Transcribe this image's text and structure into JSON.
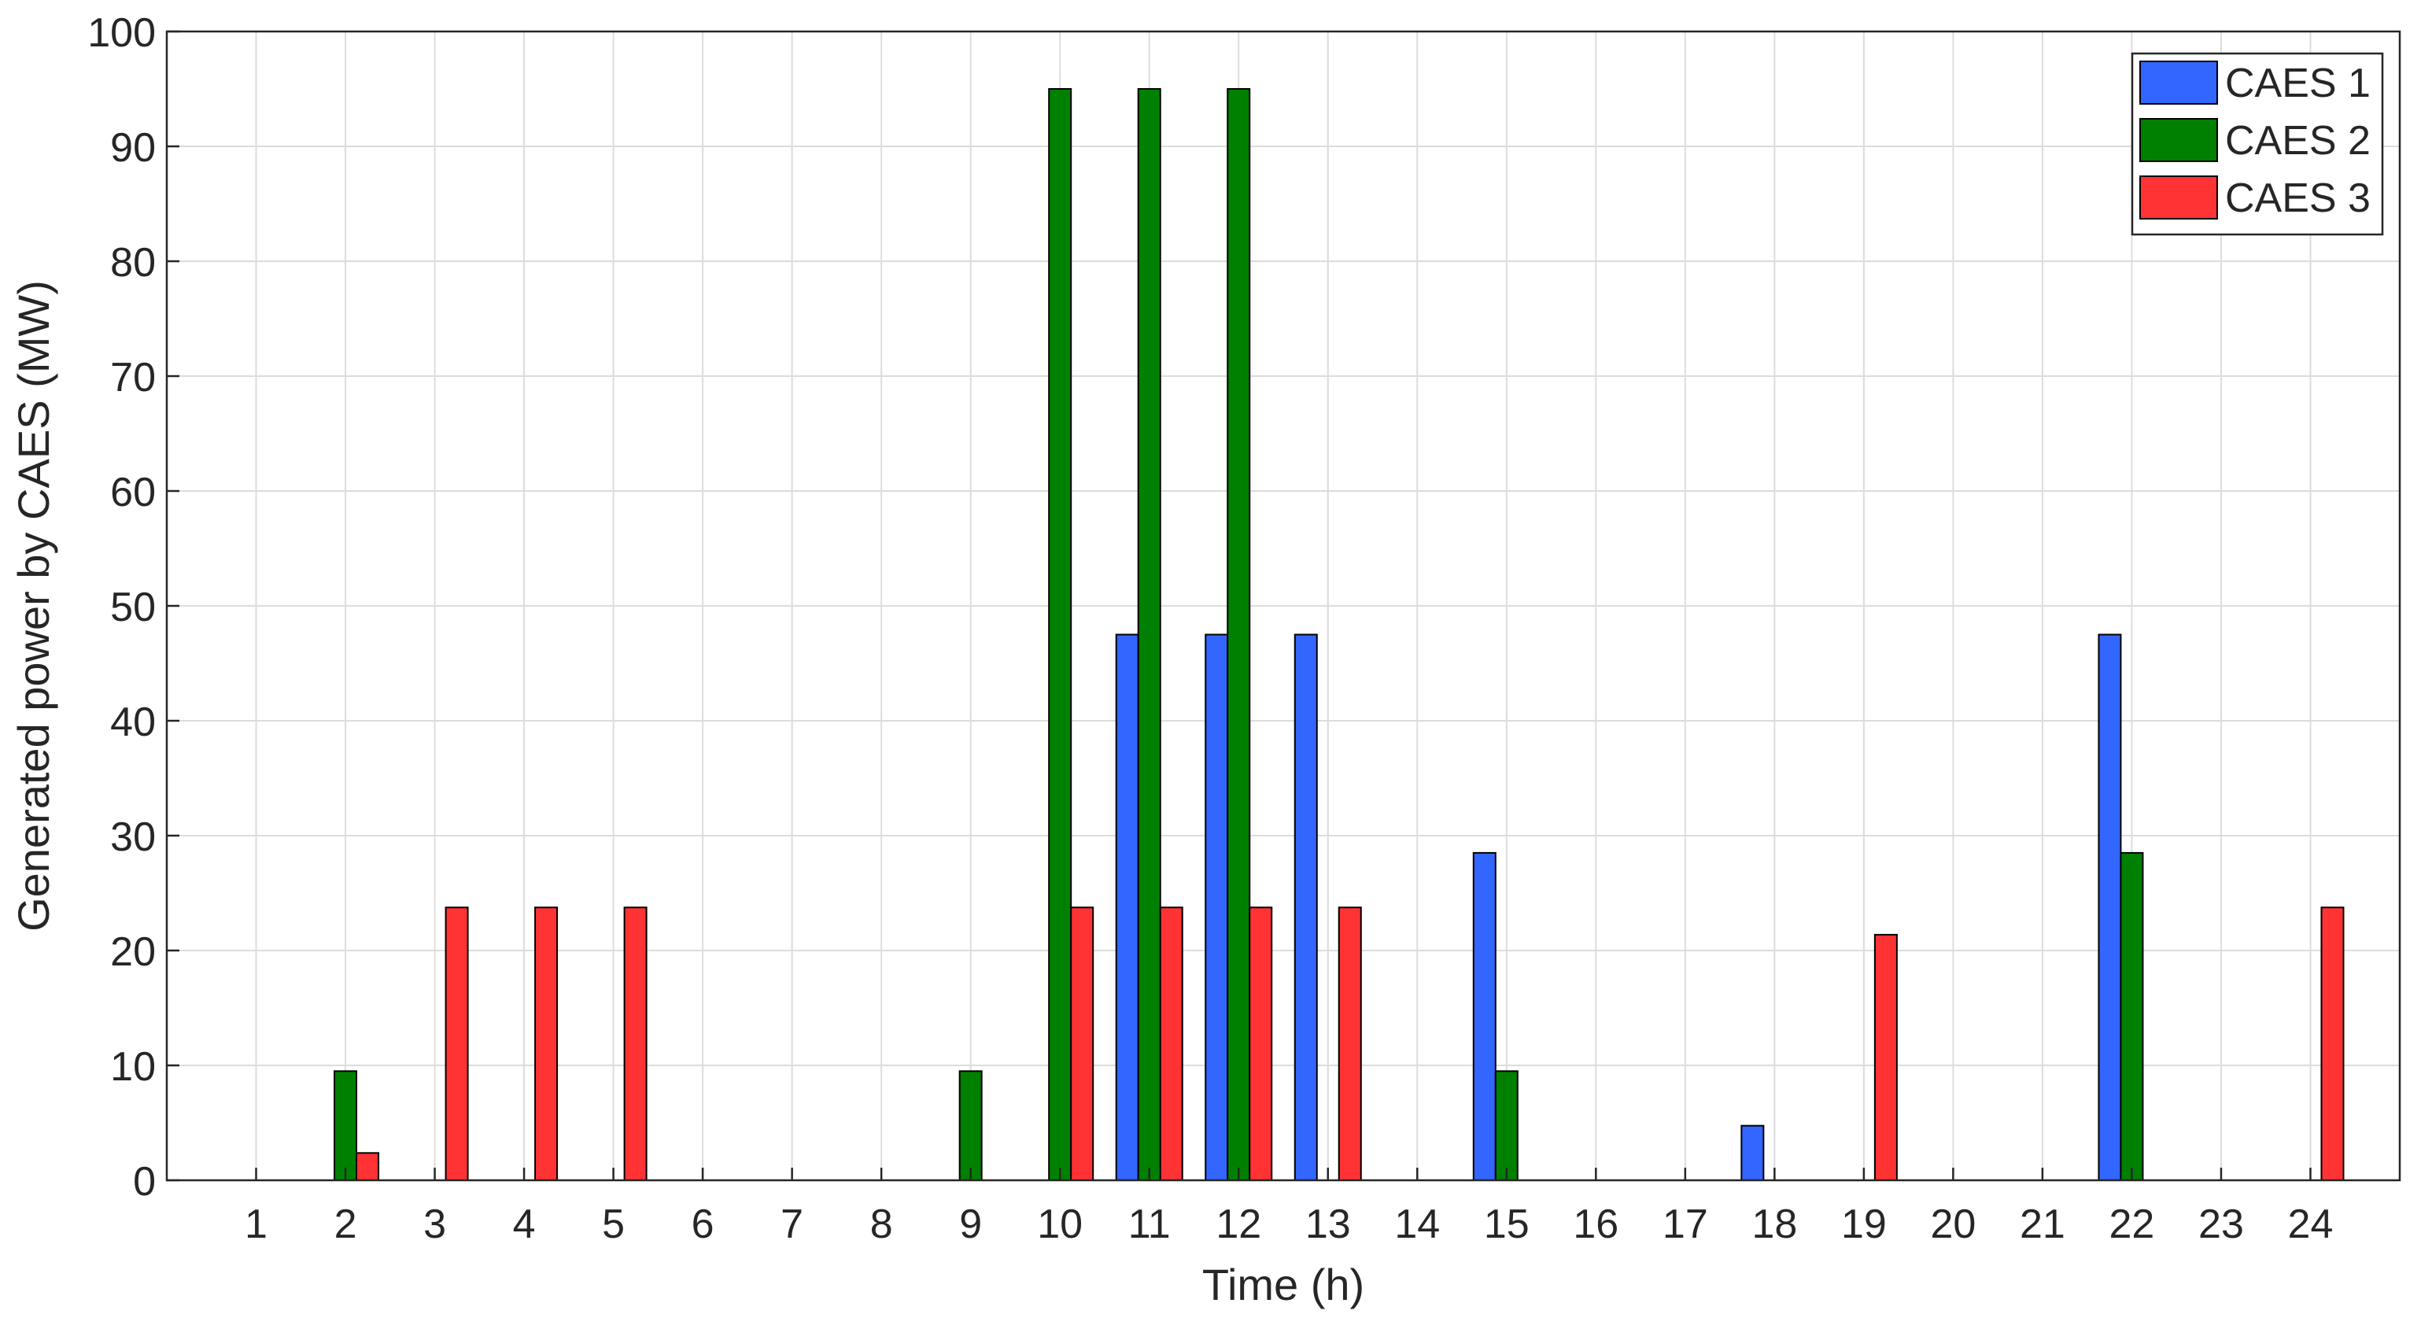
{
  "chart_data": {
    "type": "bar",
    "categories": [
      "1",
      "2",
      "3",
      "4",
      "5",
      "6",
      "7",
      "8",
      "9",
      "10",
      "11",
      "12",
      "13",
      "14",
      "15",
      "16",
      "17",
      "18",
      "19",
      "20",
      "21",
      "22",
      "23",
      "24"
    ],
    "series": [
      {
        "name": "CAES 1",
        "color": "#3366ff",
        "values": [
          0,
          0,
          0,
          0,
          0,
          0,
          0,
          0,
          0,
          0,
          47.5,
          47.5,
          47.5,
          0,
          28.5,
          0,
          0,
          4.75,
          0,
          0,
          0,
          47.5,
          0,
          0
        ]
      },
      {
        "name": "CAES 2",
        "color": "#008000",
        "values": [
          0,
          9.5,
          0,
          0,
          0,
          0,
          0,
          0,
          9.5,
          95,
          95,
          95,
          0,
          0,
          9.5,
          0,
          0,
          0,
          0,
          0,
          0,
          28.5,
          0,
          0
        ]
      },
      {
        "name": "CAES 3",
        "color": "#ff3333",
        "values": [
          0,
          2.375,
          23.75,
          23.75,
          23.75,
          0,
          0,
          0,
          0,
          23.75,
          23.75,
          23.75,
          23.75,
          0,
          0,
          0,
          0,
          0,
          21.375,
          0,
          0,
          0,
          0,
          23.75
        ]
      }
    ],
    "xlabel": "Time (h)",
    "ylabel": "Generated power by CAES (MW)",
    "ylim": [
      0,
      100
    ],
    "yticks": [
      "0",
      "10",
      "20",
      "30",
      "40",
      "50",
      "60",
      "70",
      "80",
      "90",
      "100"
    ],
    "grid": true,
    "legend_position": "top-right"
  }
}
